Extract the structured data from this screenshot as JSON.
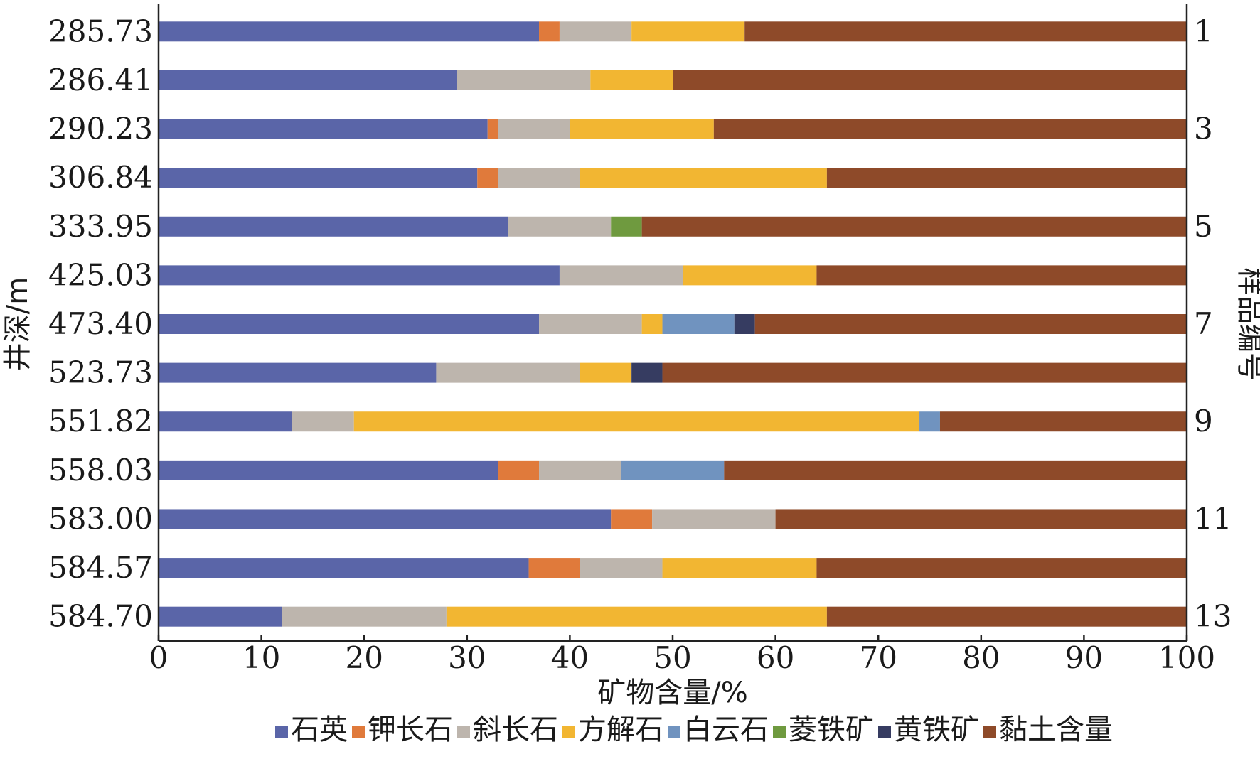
{
  "chart_data": {
    "type": "bar",
    "orientation": "horizontal",
    "stacked": true,
    "xlabel": "矿物含量/%",
    "ylabel": "井深/m",
    "y2label": "样品编号",
    "xlim": [
      0,
      100
    ],
    "xticks": [
      0,
      10,
      20,
      30,
      40,
      50,
      60,
      70,
      80,
      90,
      100
    ],
    "grid": false,
    "legend_position": "bottom",
    "categories": [
      "285.73",
      "286.41",
      "290.23",
      "306.84",
      "333.95",
      "425.03",
      "473.40",
      "523.73",
      "551.82",
      "558.03",
      "583.00",
      "584.57",
      "584.70"
    ],
    "sample_labels": [
      "1",
      "",
      "3",
      "",
      "5",
      "",
      "7",
      "",
      "9",
      "",
      "11",
      "",
      "13"
    ],
    "series": [
      {
        "name": "石英",
        "color": "#5a65a8",
        "values": [
          37,
          29,
          32,
          31,
          34,
          39,
          37,
          27,
          13,
          33,
          44,
          36,
          12
        ]
      },
      {
        "name": "钾长石",
        "color": "#e07a3b",
        "values": [
          2,
          0,
          1,
          2,
          0,
          0,
          0,
          0,
          0,
          4,
          4,
          5,
          0
        ]
      },
      {
        "name": "斜长石",
        "color": "#bdb5ad",
        "values": [
          7,
          13,
          7,
          8,
          10,
          12,
          10,
          14,
          6,
          8,
          12,
          8,
          16
        ]
      },
      {
        "name": "方解石",
        "color": "#f2b632",
        "values": [
          11,
          8,
          14,
          24,
          0,
          13,
          2,
          5,
          55,
          0,
          0,
          15,
          37
        ]
      },
      {
        "name": "白云石",
        "color": "#7093bf",
        "values": [
          0,
          0,
          0,
          0,
          0,
          0,
          7,
          0,
          2,
          10,
          0,
          0,
          0
        ]
      },
      {
        "name": "菱铁矿",
        "color": "#6f9a3f",
        "values": [
          0,
          0,
          0,
          0,
          3,
          0,
          0,
          0,
          0,
          0,
          0,
          0,
          0
        ]
      },
      {
        "name": "黄铁矿",
        "color": "#363c61",
        "values": [
          0,
          0,
          0,
          0,
          0,
          0,
          2,
          3,
          0,
          0,
          0,
          0,
          0
        ]
      },
      {
        "name": "黏土含量",
        "color": "#8e4a29",
        "values": [
          43,
          50,
          46,
          35,
          53,
          36,
          42,
          51,
          24,
          45,
          40,
          36,
          35
        ]
      }
    ]
  }
}
